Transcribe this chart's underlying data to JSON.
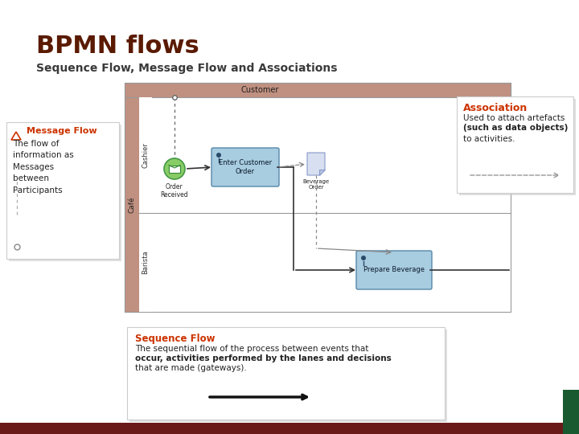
{
  "title": "BPMN flows",
  "subtitle": "Sequence Flow, Message Flow and Associations",
  "title_color": "#5a1a00",
  "subtitle_color": "#3a3a3a",
  "bg_color": "#ffffff",
  "footer_color": "#6b1a1a",
  "pool_header_color": "#c09080",
  "customer_label": "Customer",
  "cafe_label": "Café",
  "cashier_label": "Cashier",
  "barista_label": "Barista",
  "task1_label": "Enter Customer\nOrder",
  "task2_label": "Prepare Beverage",
  "event1_label": "Order\nReceived",
  "artifact_label": "Beverage\nOrder",
  "msg_flow_title": "Message Flow",
  "msg_flow_text": "The flow of\ninformation as\nMessages\nbetween\nParticipants",
  "assoc_title": "Association",
  "assoc_text1": "Used to attach artefacts",
  "assoc_text2": "(such as data objects)",
  "assoc_text3": "to activities.",
  "seq_flow_title": "Sequence Flow",
  "seq_flow_text1": "The sequential flow of the process between events that",
  "seq_flow_text2": "occur, activities performed by the lanes and decisions",
  "seq_flow_text3": "that are made (gateways)."
}
